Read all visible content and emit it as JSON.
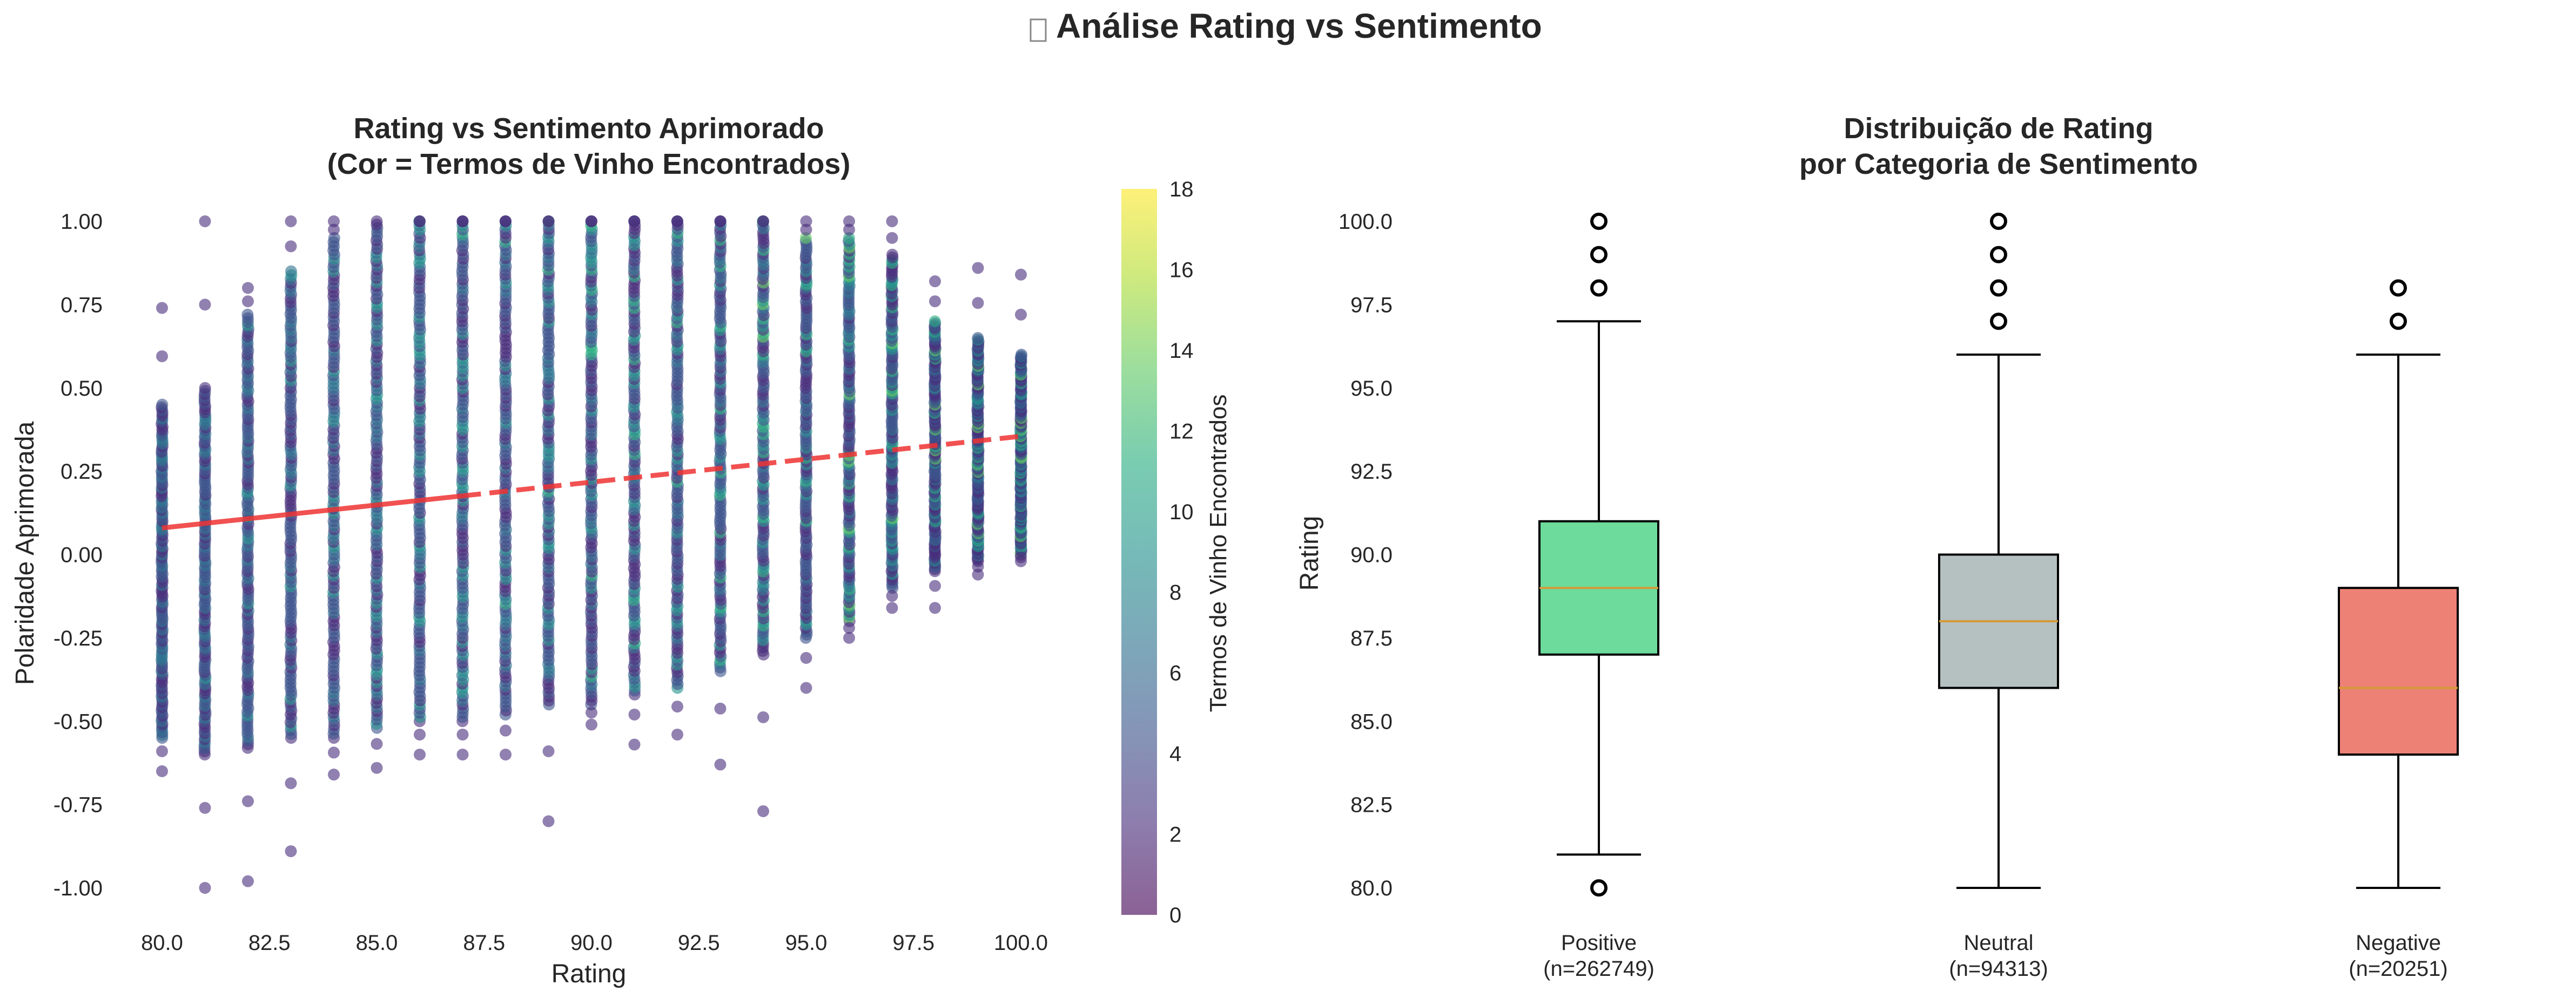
{
  "suptitle": "Análise Rating vs Sentimento",
  "suptitle_icon": "missing-glyph-box",
  "chart_data": [
    {
      "type": "scatter",
      "title_line1": "Rating vs Sentimento Aprimorado",
      "title_line2": "(Cor = Termos de Vinho Encontrados)",
      "xlabel": "Rating",
      "ylabel": "Polaridade Aprimorada",
      "xlim": [
        79.2,
        101.0
      ],
      "ylim": [
        -1.1,
        1.05
      ],
      "xticks": [
        "80.0",
        "82.5",
        "85.0",
        "87.5",
        "90.0",
        "92.5",
        "95.0",
        "97.5",
        "100.0"
      ],
      "yticks": [
        "1.00",
        "0.75",
        "0.50",
        "0.25",
        "0.00",
        "-0.25",
        "-0.50",
        "-0.75",
        "-1.00"
      ],
      "grid": false,
      "colormap": "viridis",
      "colorbar": {
        "label": "Termos de Vinho Encontrados",
        "range": [
          0,
          18
        ],
        "ticks": [
          "0",
          "2",
          "4",
          "6",
          "8",
          "10",
          "12",
          "14",
          "16",
          "18"
        ]
      },
      "trendline": {
        "x": [
          80,
          100
        ],
        "y": [
          0.08,
          0.355
        ],
        "color": "#ee3333",
        "style": "dashed"
      },
      "x": [
        80,
        81,
        82,
        83,
        84,
        85,
        86,
        87,
        88,
        89,
        90,
        91,
        92,
        93,
        94,
        95,
        96,
        97,
        98,
        99,
        100
      ],
      "y_min": [
        -0.65,
        -1.0,
        -0.98,
        -0.89,
        -0.66,
        -0.64,
        -0.6,
        -0.6,
        -0.6,
        -0.8,
        -0.51,
        -0.57,
        -0.54,
        -0.63,
        -0.77,
        -0.4,
        -0.25,
        -0.16,
        -0.16,
        -0.06,
        -0.02
      ],
      "y_max": [
        0.74,
        1.0,
        0.8,
        1.0,
        1.0,
        1.0,
        1.0,
        1.0,
        1.0,
        1.0,
        1.0,
        1.0,
        1.0,
        1.0,
        1.0,
        1.0,
        1.0,
        1.0,
        0.82,
        0.86,
        0.84
      ],
      "dense_min": [
        -0.55,
        -0.6,
        -0.58,
        -0.55,
        -0.55,
        -0.52,
        -0.5,
        -0.5,
        -0.48,
        -0.45,
        -0.45,
        -0.42,
        -0.4,
        -0.35,
        -0.3,
        -0.25,
        -0.2,
        -0.1,
        -0.05,
        -0.02,
        0.0
      ],
      "dense_max": [
        0.45,
        0.5,
        0.72,
        0.85,
        0.95,
        0.98,
        1.0,
        1.0,
        1.0,
        1.0,
        1.0,
        1.0,
        1.0,
        1.0,
        1.0,
        0.95,
        0.95,
        0.9,
        0.7,
        0.65,
        0.6
      ]
    },
    {
      "type": "box",
      "title_line1": "Distribuição de Rating",
      "title_line2": "por Categoria de Sentimento",
      "xlabel": "",
      "ylabel": "Rating",
      "ylim": [
        79.5,
        100.5
      ],
      "yticks": [
        "100.0",
        "97.5",
        "95.0",
        "92.5",
        "90.0",
        "87.5",
        "85.0",
        "82.5",
        "80.0"
      ],
      "grid": false,
      "categories": [
        {
          "name": "Positive",
          "n_label": "(n=262749)",
          "color": "#2ecc71",
          "whisker_low": 81,
          "q1": 87,
          "median": 89,
          "q3": 91,
          "whisker_high": 97,
          "outliers": [
            80,
            98,
            99,
            100
          ]
        },
        {
          "name": "Neutral",
          "n_label": "(n=94313)",
          "color": "#95a5a6",
          "whisker_low": 80,
          "q1": 86,
          "median": 88,
          "q3": 90,
          "whisker_high": 96,
          "outliers": [
            97,
            98,
            99,
            100
          ]
        },
        {
          "name": "Negative",
          "n_label": "(n=20251)",
          "color": "#e74c3c",
          "whisker_low": 80,
          "q1": 84,
          "median": 86,
          "q3": 89,
          "whisker_high": 96,
          "outliers": [
            97,
            98
          ]
        }
      ],
      "median_color": "#d49a3a"
    }
  ]
}
